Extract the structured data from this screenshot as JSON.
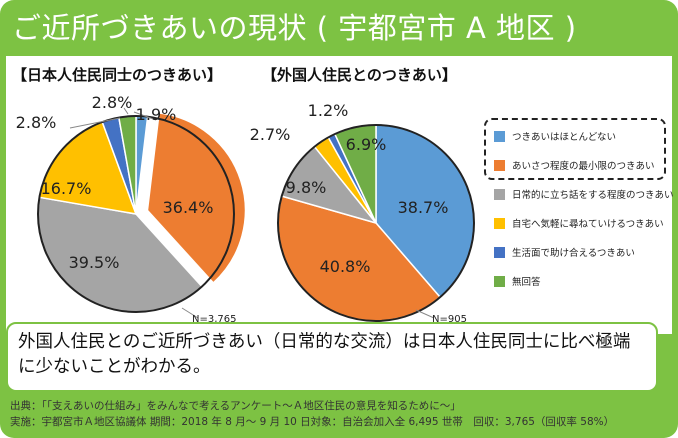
{
  "title": "ご近所づきあいの現状 ( 宇都宮市 A 地区 )",
  "colors": {
    "frame": "#7dc243",
    "blue": "#5b9bd5",
    "orange": "#ed7d31",
    "gray": "#a5a5a5",
    "yellow": "#ffc000",
    "darkblue": "#4472c4",
    "green": "#70ad47"
  },
  "legend": [
    {
      "label": "つきあいはほとんどない",
      "color": "#5b9bd5"
    },
    {
      "label": "あいさつ程度の最小限のつきあい",
      "color": "#ed7d31"
    },
    {
      "label": "日常的に立ち話をする程度のつきあい",
      "color": "#a5a5a5"
    },
    {
      "label": "自宅へ気軽に尋ねていけるつきあい",
      "color": "#ffc000"
    },
    {
      "label": "生活面で助け合えるつきあい",
      "color": "#4472c4"
    },
    {
      "label": "無回答",
      "color": "#70ad47"
    }
  ],
  "chart_data": [
    {
      "type": "pie",
      "title": "【日本人住民同士のつきあい】",
      "n_label": "N=3,765",
      "categories": [
        "つきあいはほとんどない",
        "あいさつ程度の最小限のつきあい",
        "日常的に立ち話をする程度のつきあい",
        "自宅へ気軽に尋ねていけるつきあい",
        "生活面で助け合えるつきあい",
        "無回答"
      ],
      "values": [
        1.9,
        36.4,
        39.5,
        16.7,
        2.8,
        2.8
      ],
      "labels": [
        "1.9%",
        "36.4%",
        "39.5%",
        "16.7%",
        "2.8%",
        "2.8%"
      ]
    },
    {
      "type": "pie",
      "title": "【外国人住民とのつきあい】",
      "n_label": "N=905",
      "categories": [
        "つきあいはほとんどない",
        "あいさつ程度の最小限のつきあい",
        "日常的に立ち話をする程度のつきあい",
        "自宅へ気軽に尋ねていけるつきあい",
        "生活面で助け合えるつきあい",
        "無回答"
      ],
      "values": [
        38.7,
        40.8,
        9.8,
        2.7,
        1.2,
        6.9
      ],
      "labels": [
        "38.7%",
        "40.8%",
        "9.8%",
        "2.7%",
        "1.2%",
        "6.9%"
      ]
    }
  ],
  "note": "外国人住民とのご近所づきあい（日常的な交流）は日本人住民同士に比べ極端に少ないことがわかる。",
  "footer": [
    "出典：「「支えあいの仕組み」をみんなで考えるアンケート～Ａ地区住民の意見を知るために～」",
    "実施：宇都宮市Ａ地区協議体 期間：2018 年 8 月～ 9 月 10 日対象：自治会加入全 6,495 世帯　回収：3,765（回収率 58%）"
  ]
}
